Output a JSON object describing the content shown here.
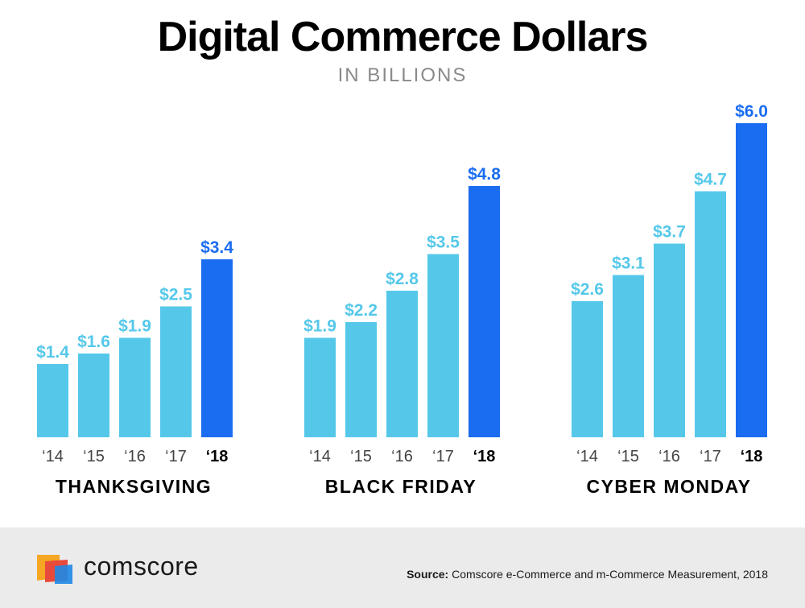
{
  "chart_data": {
    "type": "bar",
    "title": "Digital Commerce Dollars",
    "subtitle": "IN BILLIONS",
    "unit_prefix": "$",
    "categories": [
      "‘14",
      "‘15",
      "‘16",
      "‘17",
      "‘18"
    ],
    "groups": [
      {
        "name": "THANKSGIVING",
        "values": [
          1.4,
          1.6,
          1.9,
          2.5,
          3.4
        ]
      },
      {
        "name": "BLACK FRIDAY",
        "values": [
          1.9,
          2.2,
          2.8,
          3.5,
          4.8
        ]
      },
      {
        "name": "CYBER MONDAY",
        "values": [
          2.6,
          3.1,
          3.7,
          4.7,
          6.0
        ]
      }
    ],
    "highlight_category": "‘18",
    "ylim": [
      0,
      6
    ],
    "grid": false,
    "colors": {
      "bar": "#55c8ea",
      "highlight_bar": "#1a6cf0",
      "label": "#55c8ea",
      "highlight_label": "#1a6cf0",
      "tick": "#444444",
      "group_label": "#000000"
    }
  },
  "footer": {
    "brand": "comscore",
    "source_label": "Source:",
    "source_text": " Comscore e-Commerce and m-Commerce Measurement, 2018",
    "logo_icon": "comscore-logo-icon",
    "logo_colors": [
      "#f5a623",
      "#e84a3c",
      "#1e88e5"
    ]
  }
}
